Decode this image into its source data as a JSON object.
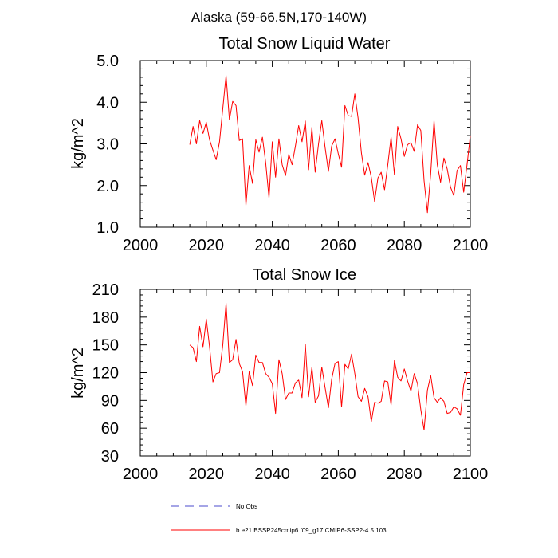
{
  "figure": {
    "title": "Alaska (59-66.5N,170-140W)",
    "legend": [
      {
        "label": "No Obs",
        "color": "#4b4bcc",
        "style": "dashed"
      },
      {
        "label": "b.e21.BSSP245cmip6.f09_g17.CMIP6-SSP2-4.5.103",
        "color": "#ff0000",
        "style": "solid"
      }
    ]
  },
  "chart_data": [
    {
      "type": "line",
      "title": "Total Snow Liquid Water",
      "xlabel": "",
      "ylabel": "kg/m^2",
      "xlim": [
        2000,
        2100
      ],
      "ylim": [
        1.0,
        5.0
      ],
      "xticks": [
        "2000",
        "2020",
        "2040",
        "2060",
        "2080",
        "2100"
      ],
      "yticks": [
        "1.0",
        "2.0",
        "3.0",
        "4.0",
        "5.0"
      ],
      "series": [
        {
          "color": "#ff0000",
          "x": [
            2015,
            2016,
            2017,
            2018,
            2019,
            2020,
            2021,
            2022,
            2023,
            2024,
            2025,
            2026,
            2027,
            2028,
            2029,
            2030,
            2031,
            2032,
            2033,
            2034,
            2035,
            2036,
            2037,
            2038,
            2039,
            2040,
            2041,
            2042,
            2043,
            2044,
            2045,
            2046,
            2047,
            2048,
            2049,
            2050,
            2051,
            2052,
            2053,
            2054,
            2055,
            2056,
            2057,
            2058,
            2059,
            2060,
            2061,
            2062,
            2063,
            2064,
            2065,
            2066,
            2067,
            2068,
            2069,
            2070,
            2071,
            2072,
            2073,
            2074,
            2075,
            2076,
            2077,
            2078,
            2079,
            2080,
            2081,
            2082,
            2083,
            2084,
            2085,
            2086,
            2087,
            2088,
            2089,
            2090,
            2091,
            2092,
            2093,
            2094,
            2095,
            2096,
            2097,
            2098,
            2099,
            2100
          ],
          "y": [
            2.98,
            3.42,
            3.0,
            3.56,
            3.25,
            3.52,
            3.1,
            2.85,
            2.62,
            3.05,
            3.85,
            4.64,
            3.58,
            4.02,
            3.92,
            3.08,
            3.12,
            1.52,
            2.48,
            2.05,
            3.1,
            2.8,
            3.16,
            2.55,
            1.7,
            3.05,
            2.2,
            3.12,
            2.5,
            2.24,
            2.75,
            2.5,
            2.95,
            3.44,
            3.05,
            3.55,
            2.38,
            3.4,
            2.32,
            3.0,
            3.56,
            2.92,
            2.34,
            2.95,
            3.12,
            2.76,
            2.44,
            3.92,
            3.68,
            3.66,
            4.2,
            3.62,
            2.78,
            2.25,
            2.55,
            2.2,
            1.62,
            2.18,
            2.32,
            1.9,
            2.5,
            3.16,
            2.26,
            3.42,
            3.12,
            2.7,
            2.98,
            3.03,
            2.82,
            3.46,
            3.32,
            2.12,
            1.35,
            2.28,
            3.56,
            2.5,
            2.08,
            2.66,
            2.4,
            1.96,
            1.76,
            2.36,
            2.48,
            1.84,
            2.5,
            3.2
          ]
        }
      ]
    },
    {
      "type": "line",
      "title": "Total Snow Ice",
      "xlabel": "",
      "ylabel": "kg/m^2",
      "xlim": [
        2000,
        2100
      ],
      "ylim": [
        30,
        210
      ],
      "xticks": [
        "2000",
        "2020",
        "2040",
        "2060",
        "2080",
        "2100"
      ],
      "yticks": [
        "30",
        "60",
        "90",
        "120",
        "150",
        "180",
        "210"
      ],
      "series": [
        {
          "color": "#ff0000",
          "x": [
            2015,
            2016,
            2017,
            2018,
            2019,
            2020,
            2021,
            2022,
            2023,
            2024,
            2025,
            2026,
            2027,
            2028,
            2029,
            2030,
            2031,
            2032,
            2033,
            2034,
            2035,
            2036,
            2037,
            2038,
            2039,
            2040,
            2041,
            2042,
            2043,
            2044,
            2045,
            2046,
            2047,
            2048,
            2049,
            2050,
            2051,
            2052,
            2053,
            2054,
            2055,
            2056,
            2057,
            2058,
            2059,
            2060,
            2061,
            2062,
            2063,
            2064,
            2065,
            2066,
            2067,
            2068,
            2069,
            2070,
            2071,
            2072,
            2073,
            2074,
            2075,
            2076,
            2077,
            2078,
            2079,
            2080,
            2081,
            2082,
            2083,
            2084,
            2085,
            2086,
            2087,
            2088,
            2089,
            2090,
            2091,
            2092,
            2093,
            2094,
            2095,
            2096,
            2097,
            2098,
            2099,
            2100
          ],
          "y": [
            150,
            147,
            132,
            170,
            148,
            178,
            148,
            110,
            119,
            120,
            150,
            195,
            131,
            134,
            156,
            130,
            121,
            84,
            121,
            106,
            139,
            131,
            131,
            119,
            115,
            108,
            76,
            134,
            119,
            91,
            98,
            98,
            109,
            112,
            93,
            151,
            94,
            126,
            88,
            95,
            126,
            104,
            82,
            113,
            130,
            132,
            83,
            129,
            124,
            140,
            119,
            94,
            89,
            103,
            94,
            67,
            88,
            87,
            89,
            111,
            110,
            85,
            133,
            115,
            111,
            124,
            111,
            100,
            119,
            108,
            80,
            58,
            101,
            117,
            93,
            88,
            93,
            89,
            76,
            77,
            83,
            81,
            74,
            107,
            120,
            120
          ]
        }
      ]
    }
  ]
}
